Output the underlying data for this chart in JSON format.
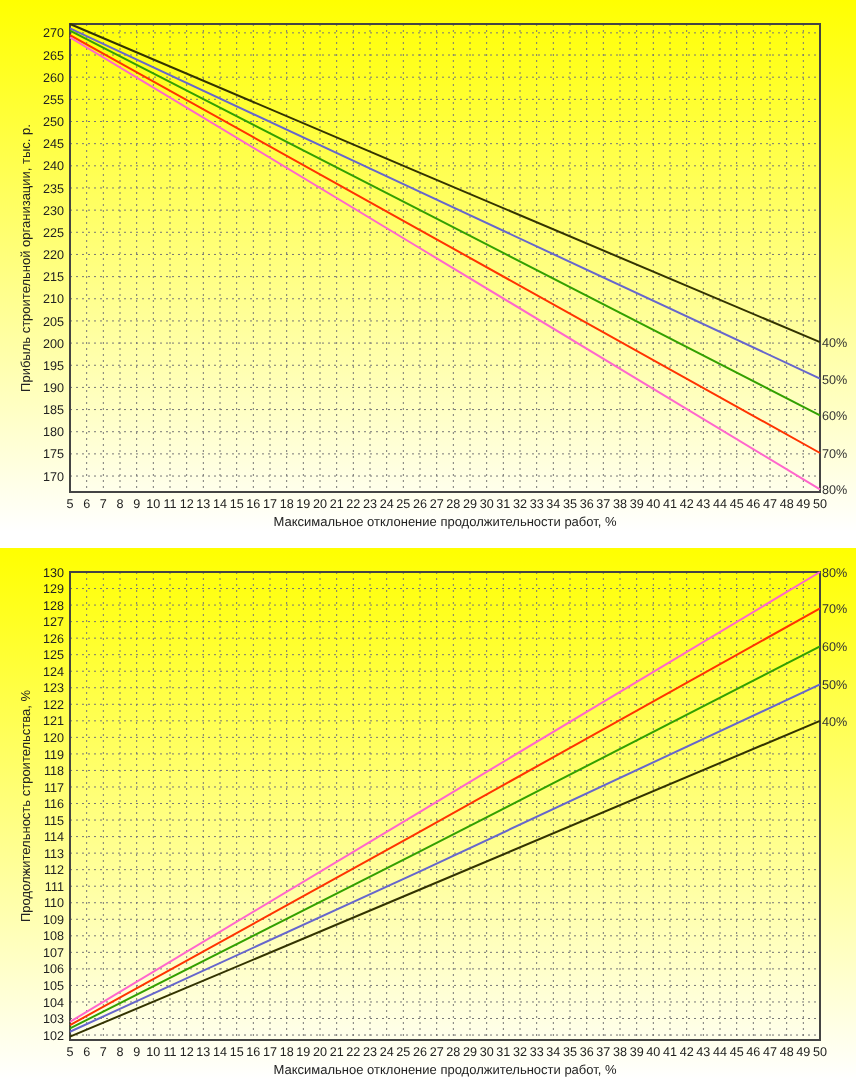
{
  "chart_data": [
    {
      "type": "line",
      "xlabel": "Максимальное отклонение продолжительности работ, %",
      "ylabel": "Прибыль строительной организации, тыс. р.",
      "x": [
        5,
        26,
        50
      ],
      "series": [
        {
          "name": "40%",
          "color": "#333300",
          "values": [
            272,
            238.4,
            200.2
          ]
        },
        {
          "name": "50%",
          "color": "#6666cc",
          "values": [
            271,
            234.1,
            192
          ]
        },
        {
          "name": "60%",
          "color": "#33a000",
          "values": [
            270.5,
            230,
            183.7
          ]
        },
        {
          "name": "70%",
          "color": "#ff3300",
          "values": [
            269.5,
            225.5,
            175.2
          ]
        },
        {
          "name": "80%",
          "color": "#ff66cc",
          "values": [
            269,
            221.4,
            167
          ]
        }
      ],
      "xlim": [
        5,
        50
      ],
      "xticks": [
        5,
        6,
        7,
        8,
        9,
        10,
        11,
        12,
        13,
        14,
        15,
        16,
        17,
        18,
        19,
        20,
        21,
        22,
        23,
        24,
        25,
        26,
        27,
        28,
        29,
        30,
        31,
        32,
        33,
        34,
        35,
        36,
        37,
        38,
        39,
        40,
        41,
        42,
        43,
        44,
        45,
        46,
        47,
        48,
        49,
        50
      ],
      "ylim": [
        166.4,
        272
      ],
      "yticks": [
        170,
        175,
        180,
        185,
        190,
        195,
        200,
        205,
        210,
        215,
        220,
        225,
        230,
        235,
        240,
        245,
        250,
        255,
        260,
        265,
        270
      ],
      "grid": true
    },
    {
      "type": "line",
      "xlabel": "Максимальное отклонение продолжительности работ, %",
      "ylabel": "Продолжительность строительства, %",
      "x": [
        5,
        26,
        50
      ],
      "series": [
        {
          "name": "40%",
          "color": "#333300",
          "values": [
            101.9,
            110.8,
            121
          ]
        },
        {
          "name": "50%",
          "color": "#6666cc",
          "values": [
            102.2,
            111.9,
            123.2
          ]
        },
        {
          "name": "60%",
          "color": "#33a000",
          "values": [
            102.4,
            113.1,
            125.5
          ]
        },
        {
          "name": "70%",
          "color": "#ff3300",
          "values": [
            102.6,
            114.3,
            127.8
          ]
        },
        {
          "name": "80%",
          "color": "#ff66cc",
          "values": [
            102.8,
            115.5,
            130
          ]
        }
      ],
      "xlim": [
        5,
        50
      ],
      "xticks": [
        5,
        6,
        7,
        8,
        9,
        10,
        11,
        12,
        13,
        14,
        15,
        16,
        17,
        18,
        19,
        20,
        21,
        22,
        23,
        24,
        25,
        26,
        27,
        28,
        29,
        30,
        31,
        32,
        33,
        34,
        35,
        36,
        37,
        38,
        39,
        40,
        41,
        42,
        43,
        44,
        45,
        46,
        47,
        48,
        49,
        50
      ],
      "ylim": [
        101.7,
        130
      ],
      "yticks": [
        102,
        103,
        104,
        105,
        106,
        107,
        108,
        109,
        110,
        111,
        112,
        113,
        114,
        115,
        116,
        117,
        118,
        119,
        120,
        121,
        122,
        123,
        124,
        125,
        126,
        127,
        128,
        129,
        130
      ],
      "grid": true
    }
  ]
}
